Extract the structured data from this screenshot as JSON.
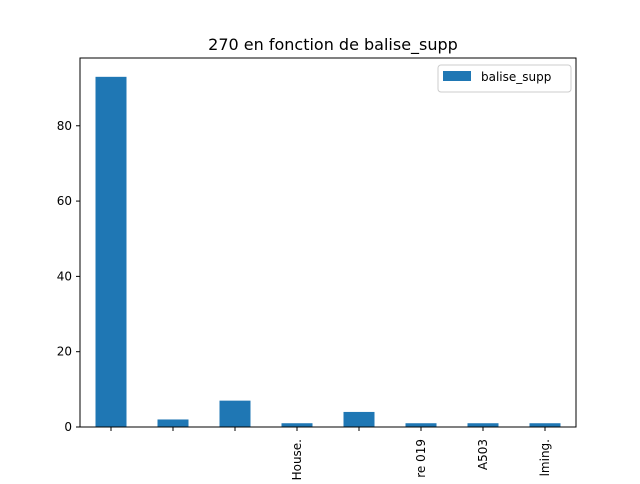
{
  "chart_data": {
    "type": "bar",
    "title": "270 en fonction de balise_supp",
    "xlabel": "",
    "ylabel": "",
    "categories": [
      "",
      "",
      "",
      "House.",
      "",
      "re 019",
      "A503",
      "lming."
    ],
    "series": [
      {
        "name": "balise_supp",
        "values": [
          93,
          2,
          7,
          1,
          4,
          1,
          1,
          1
        ],
        "color": "#1f77b4"
      }
    ],
    "ylim": [
      0,
      98
    ],
    "yticks": [
      0,
      20,
      40,
      60,
      80
    ],
    "grid": false,
    "legend_position": "top-right"
  }
}
